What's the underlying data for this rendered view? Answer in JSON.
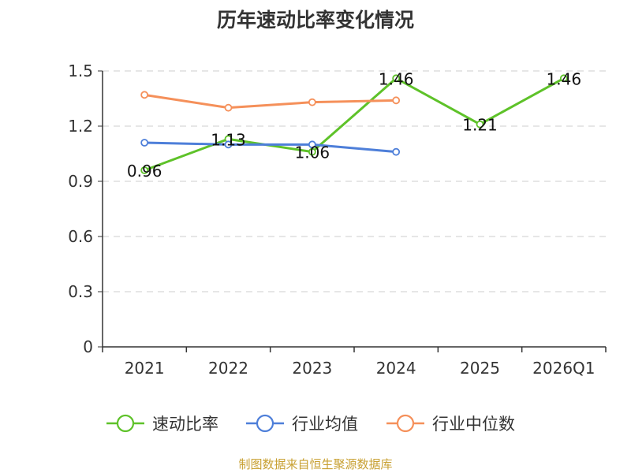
{
  "chart_data": {
    "type": "line",
    "title": "历年速动比率变化情况",
    "categories": [
      "2021",
      "2022",
      "2023",
      "2024",
      "2025",
      "2026Q1"
    ],
    "ylim": [
      0,
      1.5
    ],
    "yticks": [
      0,
      0.3,
      0.6,
      0.9,
      1.2,
      1.5
    ],
    "ytick_labels": [
      "0",
      "0.3",
      "0.6",
      "0.9",
      "1.2",
      "1.5"
    ],
    "grid": true,
    "legend_position": "bottom",
    "series": [
      {
        "name": "速动比率",
        "color": "#5ec229",
        "values": [
          0.96,
          1.13,
          1.06,
          1.46,
          1.21,
          1.46
        ],
        "labels": [
          "0.96",
          "1.13",
          "1.06",
          "1.46",
          "1.21",
          "1.46"
        ],
        "show_labels": true
      },
      {
        "name": "行业均值",
        "color": "#4e7fd9",
        "values": [
          1.11,
          1.1,
          1.1,
          1.06,
          null,
          null
        ],
        "show_labels": false
      },
      {
        "name": "行业中位数",
        "color": "#f5905a",
        "values": [
          1.37,
          1.3,
          1.33,
          1.34,
          null,
          null
        ],
        "show_labels": false
      }
    ]
  },
  "source": "制图数据来自恒生聚源数据库"
}
